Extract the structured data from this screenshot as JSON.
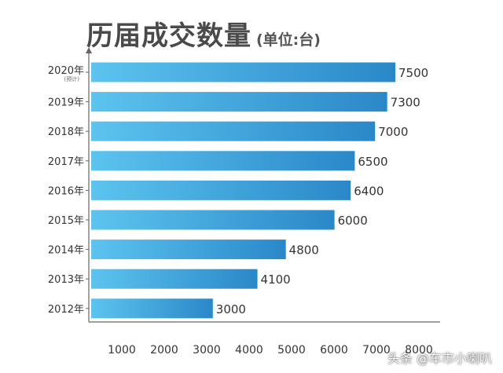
{
  "chart_data": {
    "type": "bar",
    "orientation": "horizontal",
    "title": "历届成交数量",
    "unit_label": "(单位:台)",
    "categories": [
      "2020年",
      "2019年",
      "2018年",
      "2017年",
      "2016年",
      "2015年",
      "2014年",
      "2013年",
      "2012年"
    ],
    "category_notes": [
      "(预计)",
      "",
      "",
      "",
      "",
      "",
      "",
      "",
      ""
    ],
    "values": [
      7500,
      7300,
      7000,
      6500,
      6400,
      6000,
      4800,
      4100,
      3000
    ],
    "data_labels": [
      "7500",
      "7300",
      "7000",
      "6500",
      "6400",
      "6000",
      "4800",
      "4100",
      "3000"
    ],
    "x_ticks": [
      "1000",
      "2000",
      "3000",
      "4000",
      "5000",
      "6000",
      "7000",
      "8000"
    ],
    "bar_color_start": "#5cc4ef",
    "bar_color_end": "#2a88c8",
    "grid": false,
    "legend": "none"
  },
  "watermark": "头条 @车市小喇叭"
}
